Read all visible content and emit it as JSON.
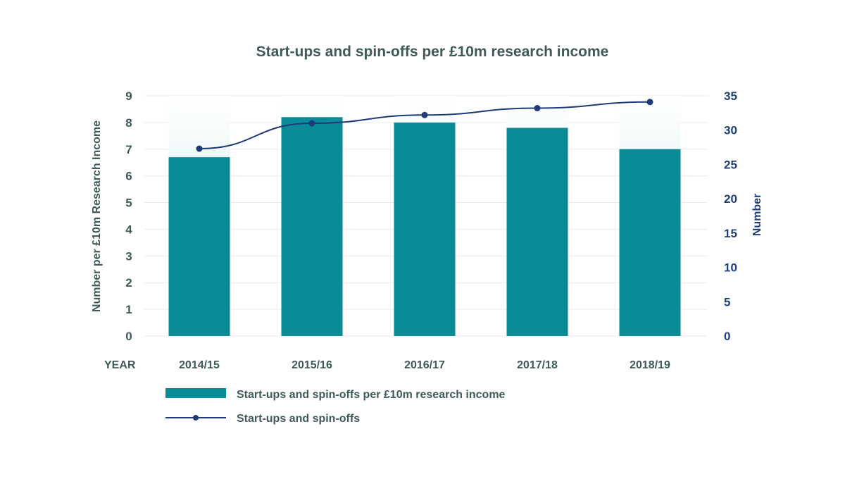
{
  "chart_data": {
    "type": "bar",
    "title": "Start-ups and spin-offs per £10m research income",
    "xlabel": "YEAR",
    "ylabel": "Number per £10m Research Income",
    "y2label": "Number",
    "categories": [
      "2014/15",
      "2015/16",
      "2016/17",
      "2017/18",
      "2018/19"
    ],
    "ylim": [
      0,
      9
    ],
    "y2lim": [
      0,
      35
    ],
    "yticks": [
      "0",
      "1",
      "2",
      "3",
      "4",
      "5",
      "6",
      "7",
      "8",
      "9"
    ],
    "y2ticks": [
      "0",
      "5",
      "10",
      "15",
      "20",
      "25",
      "30",
      "35"
    ],
    "grid": true,
    "legend_position": "bottom",
    "series": [
      {
        "name": "Start-ups and spin-offs per £10m research income",
        "type": "bar",
        "axis": "left",
        "values": [
          6.7,
          8.2,
          8.0,
          7.8,
          7.0
        ],
        "color": "#0b8b97"
      },
      {
        "name": "Start-ups and spin-offs",
        "type": "line",
        "axis": "right",
        "values": [
          27.3,
          31.0,
          32.2,
          33.2,
          34.1
        ],
        "color": "#1f3a78"
      }
    ]
  }
}
